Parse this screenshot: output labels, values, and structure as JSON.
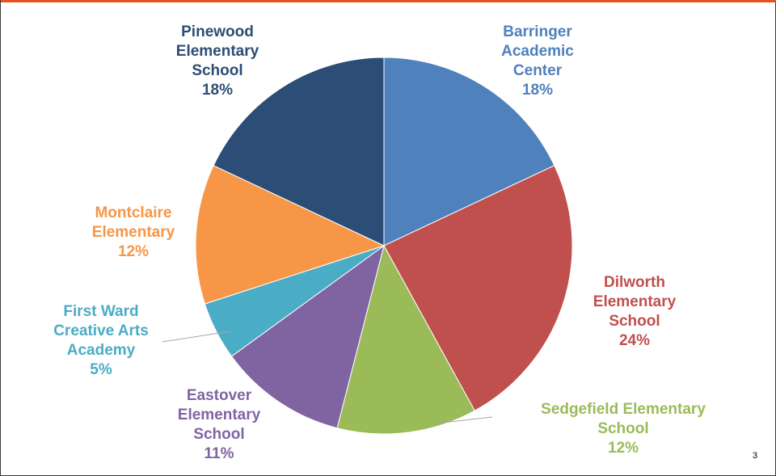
{
  "chart_data": {
    "type": "pie",
    "title": "",
    "slices": [
      {
        "name_lines": [
          "Barringer",
          "Academic",
          "Center"
        ],
        "value": 18,
        "value_label": "18%",
        "color": "#4f81bd"
      },
      {
        "name_lines": [
          "Dilworth",
          "Elementary",
          "School"
        ],
        "value": 24,
        "value_label": "24%",
        "color": "#c0504d"
      },
      {
        "name_lines": [
          "Sedgefield Elementary",
          "School"
        ],
        "value": 12,
        "value_label": "12%",
        "color": "#9bbb59"
      },
      {
        "name_lines": [
          "Eastover",
          "Elementary",
          "School"
        ],
        "value": 11,
        "value_label": "11%",
        "color": "#8064a2"
      },
      {
        "name_lines": [
          "First Ward",
          "Creative Arts",
          "Academy"
        ],
        "value": 5,
        "value_label": "5%",
        "color": "#4bacc6"
      },
      {
        "name_lines": [
          "Montclaire",
          "Elementary"
        ],
        "value": 12,
        "value_label": "12%",
        "color": "#f79646"
      },
      {
        "name_lines": [
          "Pinewood",
          "Elementary",
          "School"
        ],
        "value": 18,
        "value_label": "18%",
        "color": "#2c4d75"
      }
    ],
    "legend": "none",
    "data_labels": "outside"
  },
  "slide": {
    "page_number": "3",
    "accent_color": "#e8521f"
  }
}
